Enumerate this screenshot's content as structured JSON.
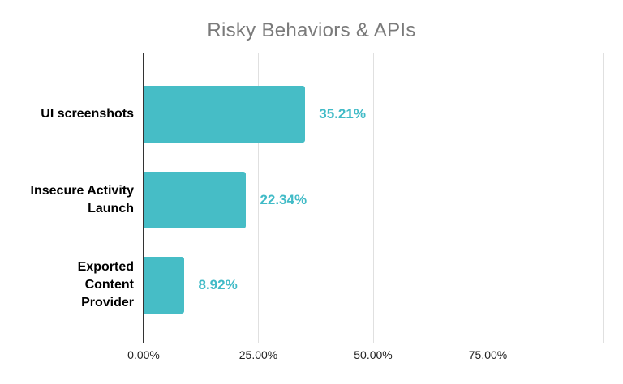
{
  "chart_data": {
    "type": "bar",
    "orientation": "horizontal",
    "title": "Risky Behaviors & APIs",
    "categories": [
      "UI screenshots",
      "Insecure Activity\nLaunch",
      "Exported\nContent\nProvider"
    ],
    "values": [
      35.21,
      22.34,
      8.92
    ],
    "data_labels": [
      "35.21%",
      "22.34%",
      "8.92%"
    ],
    "x_ticks": [
      {
        "value": 0,
        "label": "0.00%"
      },
      {
        "value": 25,
        "label": "25.00%"
      },
      {
        "value": 50,
        "label": "50.00%"
      },
      {
        "value": 75,
        "label": "75.00%"
      },
      {
        "value": 100,
        "label": ""
      }
    ],
    "xlim": [
      0,
      100
    ],
    "xlabel": "",
    "ylabel": "",
    "legend": "none",
    "grid": "vertical",
    "colors": {
      "bar": "#46BDC6",
      "value_label": "#41BBC7",
      "title": "#7a7a7a",
      "category_label": "#000000",
      "tick_label": "#222222",
      "gridline": "#e0e0e0",
      "axis_line": "#333333"
    }
  }
}
